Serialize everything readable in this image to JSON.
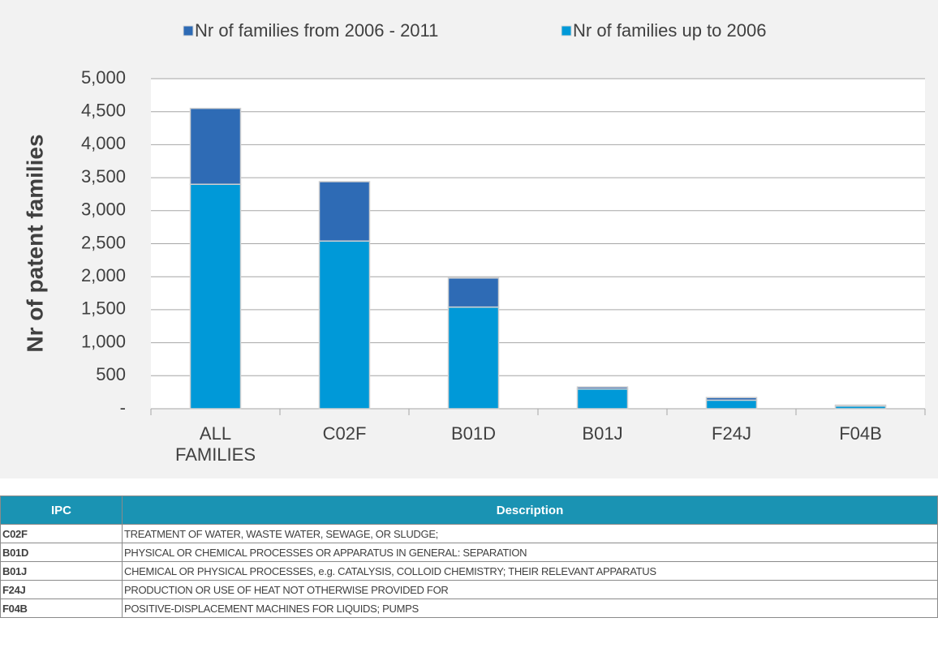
{
  "chart_data": {
    "type": "stacked_bar",
    "y_label": "Nr of patent families",
    "categories": [
      "ALL FAMILIES",
      "C02F",
      "B01D",
      "B01J",
      "F24J",
      "F04B"
    ],
    "series": [
      {
        "name": "Nr of families from 2006 - 2011",
        "color": "#2e6bb5",
        "values": [
          1150,
          900,
          440,
          30,
          40,
          15
        ]
      },
      {
        "name": "Nr of families up to 2006",
        "color": "#0099d8",
        "values": [
          3400,
          2540,
          1540,
          300,
          130,
          40
        ]
      }
    ],
    "ylim": [
      0,
      5000
    ],
    "yticks": [
      {
        "value": 0,
        "label": "-"
      },
      500,
      {
        "value": 1000,
        "label": "1,000"
      },
      {
        "value": 1500,
        "label": "1,500"
      },
      {
        "value": 2000,
        "label": "2,000"
      },
      {
        "value": 2500,
        "label": "2,500"
      },
      {
        "value": 3000,
        "label": "3,000"
      },
      {
        "value": 3500,
        "label": "3,500"
      },
      {
        "value": 4000,
        "label": "4,000"
      },
      {
        "value": 4500,
        "label": "4,500"
      },
      {
        "value": 5000,
        "label": "5,000"
      }
    ],
    "grid": true,
    "legend": "top"
  },
  "table": {
    "header": [
      "IPC",
      "Description"
    ],
    "rows": [
      [
        "C02F",
        "TREATMENT OF WATER, WASTE WATER, SEWAGE, OR SLUDGE;"
      ],
      [
        "B01D",
        "PHYSICAL OR CHEMICAL PROCESSES OR APPARATUS IN GENERAL: SEPARATION"
      ],
      [
        "B01J",
        "CHEMICAL OR PHYSICAL PROCESSES, e.g. CATALYSIS, COLLOID CHEMISTRY; THEIR RELEVANT APPARATUS"
      ],
      [
        "F24J",
        "PRODUCTION OR USE OF HEAT NOT OTHERWISE PROVIDED FOR"
      ],
      [
        "F04B",
        "POSITIVE-DISPLACEMENT MACHINES FOR LIQUIDS; PUMPS"
      ]
    ]
  }
}
